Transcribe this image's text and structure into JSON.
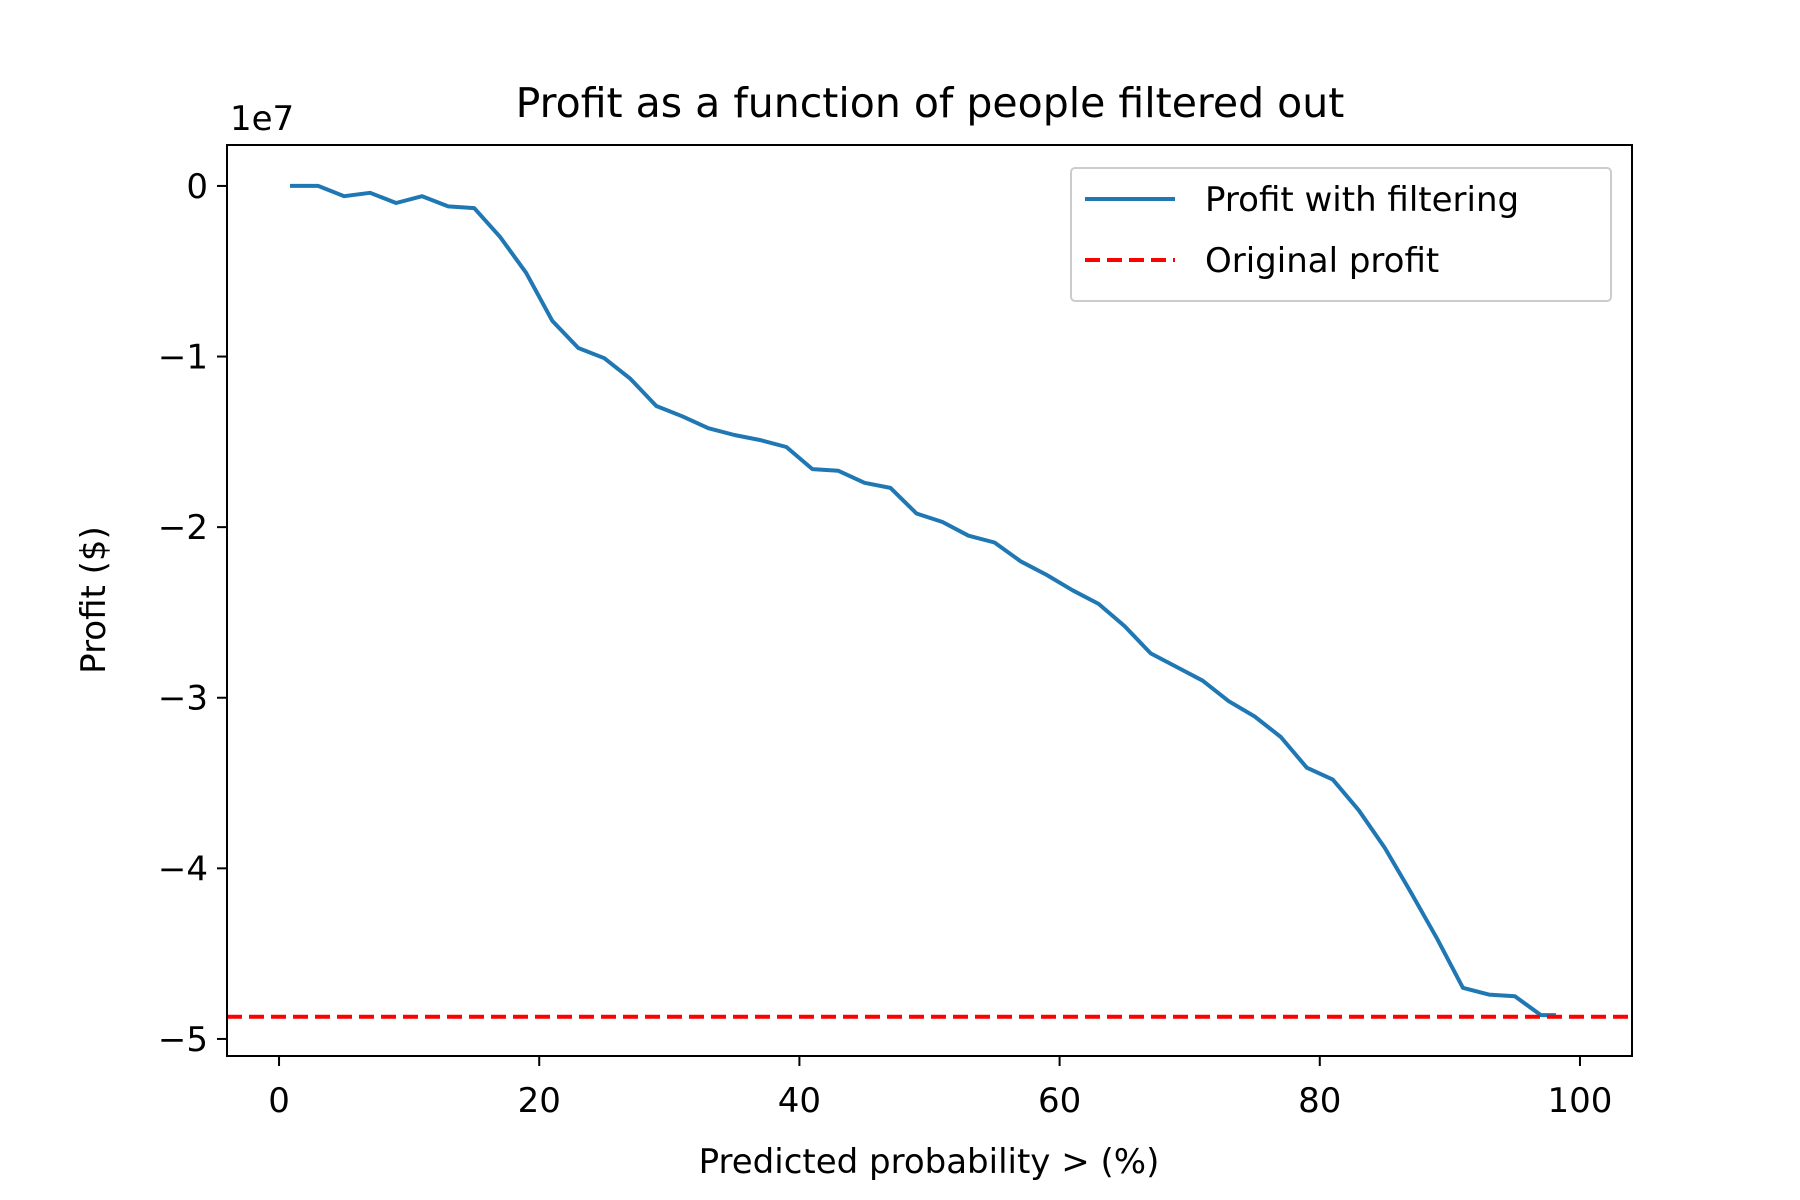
{
  "chart_data": {
    "type": "line",
    "title": "Profit as a function of people filtered out",
    "xlabel": "Predicted probability > (%)",
    "ylabel": "Profit ($)",
    "y_offset_label": "1e7",
    "y_scale_factor": 10000000,
    "xlim": [
      -4,
      104
    ],
    "ylim": [
      -51.0,
      2.4
    ],
    "x_ticks": [
      0,
      20,
      40,
      60,
      80,
      100
    ],
    "x_tick_labels": [
      "0",
      "20",
      "40",
      "60",
      "80",
      "100"
    ],
    "y_ticks": [
      0,
      -10,
      -20,
      -30,
      -40,
      -50
    ],
    "y_tick_labels": [
      "0",
      "−1",
      "−2",
      "−3",
      "−4",
      "−5"
    ],
    "grid": false,
    "legend_position": "top-right",
    "series": [
      {
        "name": "Profit with filtering",
        "color": "#1f77b4",
        "line_style": "solid",
        "x": [
          1,
          3,
          5,
          7,
          9,
          11,
          13,
          15,
          17,
          19,
          21,
          23,
          25,
          27,
          29,
          31,
          33,
          35,
          37,
          39,
          41,
          43,
          45,
          47,
          49,
          51,
          53,
          55,
          57,
          59,
          61,
          63,
          65,
          67,
          69,
          71,
          73,
          75,
          77,
          79,
          81,
          83,
          85,
          87,
          89,
          91,
          93,
          95,
          97,
          98
        ],
        "y": [
          0.0,
          0.0,
          -0.6,
          -0.4,
          -1.0,
          -0.6,
          -1.2,
          -1.3,
          -3.0,
          -5.1,
          -7.9,
          -9.5,
          -10.1,
          -11.3,
          -12.9,
          -13.5,
          -14.2,
          -14.6,
          -14.9,
          -15.3,
          -16.6,
          -16.7,
          -17.4,
          -17.7,
          -19.2,
          -19.7,
          -20.5,
          -20.9,
          -22.0,
          -22.8,
          -23.7,
          -24.5,
          -25.8,
          -27.4,
          -28.2,
          -29.0,
          -30.2,
          -31.1,
          -32.3,
          -34.1,
          -34.8,
          -36.6,
          -38.8,
          -41.4,
          -44.1,
          -47.0,
          -47.4,
          -47.5,
          -48.6,
          -48.6
        ]
      },
      {
        "name": "Original profit",
        "color": "#ff0000",
        "line_style": "dashed",
        "type": "horizontal_line",
        "y": -48.7
      }
    ]
  }
}
